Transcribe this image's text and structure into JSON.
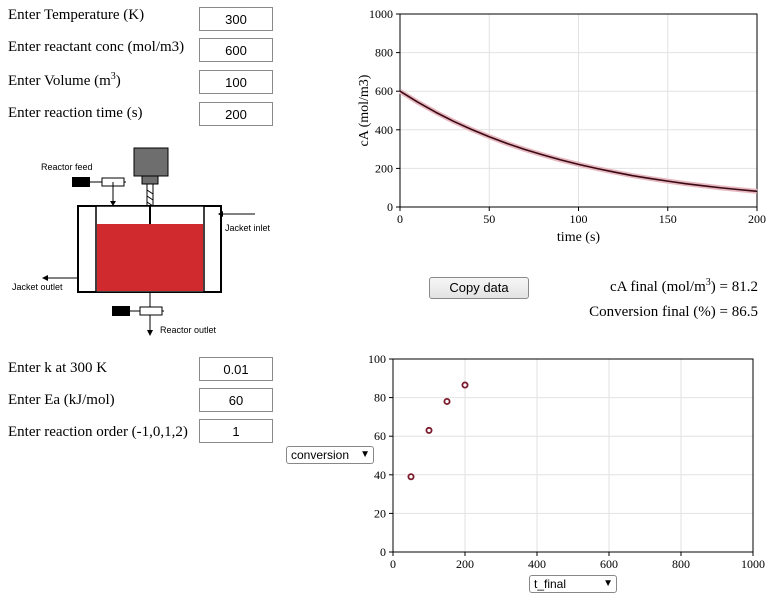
{
  "inputs": {
    "temperature": {
      "label_text": "Enter Temperature (K)",
      "value": "300"
    },
    "conc": {
      "label_text": "Enter reactant conc (mol/m3)",
      "value": "600"
    },
    "volume": {
      "label_text": "Enter Volume (m",
      "label_sup": "3",
      "label_end": ")",
      "value": "100"
    },
    "time": {
      "label_text": "Enter reaction time (s)",
      "value": "200"
    },
    "k": {
      "label_text": "Enter k at 300 K",
      "value": "0.01"
    },
    "ea": {
      "label_text": "Enter Ea (kJ/mol)",
      "value": "60"
    },
    "order": {
      "label_text": "Enter reaction order (-1,0,1,2)",
      "value": "1"
    }
  },
  "schematic": {
    "reactor_feed": "Reactor feed",
    "jacket_inlet": "Jacket inlet",
    "jacket_outlet": "Jacket outlet",
    "reactor_outlet": "Reactor outlet",
    "fluid_color": "#d02a2e"
  },
  "copy_button": "Copy data",
  "results": {
    "cA_label": "cA final (mol/m",
    "cA_sup": "3",
    "cA_end": ") = 81.2",
    "conv_label": "Conversion final (%) = 86.5"
  },
  "selects": {
    "y_select": "conversion",
    "x_select": "t_final"
  },
  "chart_data": [
    {
      "type": "line",
      "xlabel": "time (s)",
      "ylabel": "cA (mol/m3)",
      "xlim": [
        0,
        200
      ],
      "ylim": [
        0,
        1000
      ],
      "xticks": [
        0,
        50,
        100,
        150,
        200
      ],
      "yticks": [
        0,
        200,
        400,
        600,
        800,
        1000
      ],
      "grid": true,
      "line_color": "#3a0a14",
      "series": [
        {
          "x": [
            0,
            10,
            20,
            30,
            40,
            50,
            60,
            70,
            80,
            90,
            100,
            110,
            120,
            130,
            140,
            150,
            160,
            170,
            180,
            190,
            200
          ],
          "y": [
            600,
            543,
            491,
            444,
            402,
            364,
            329,
            298,
            270,
            244,
            221,
            200,
            181,
            163,
            148,
            134,
            121,
            110,
            99,
            90,
            81.2
          ]
        }
      ]
    },
    {
      "type": "scatter",
      "xlabel": "",
      "ylabel": "",
      "xlim": [
        0,
        1000
      ],
      "ylim": [
        0,
        100
      ],
      "xticks": [
        0,
        200,
        400,
        600,
        800,
        1000
      ],
      "yticks": [
        0,
        20,
        40,
        60,
        80,
        100
      ],
      "grid": true,
      "marker_color": "#7a1a2a",
      "series": [
        {
          "x": [
            50,
            100,
            150,
            200
          ],
          "y": [
            39,
            63,
            78,
            86.5
          ]
        }
      ]
    }
  ]
}
